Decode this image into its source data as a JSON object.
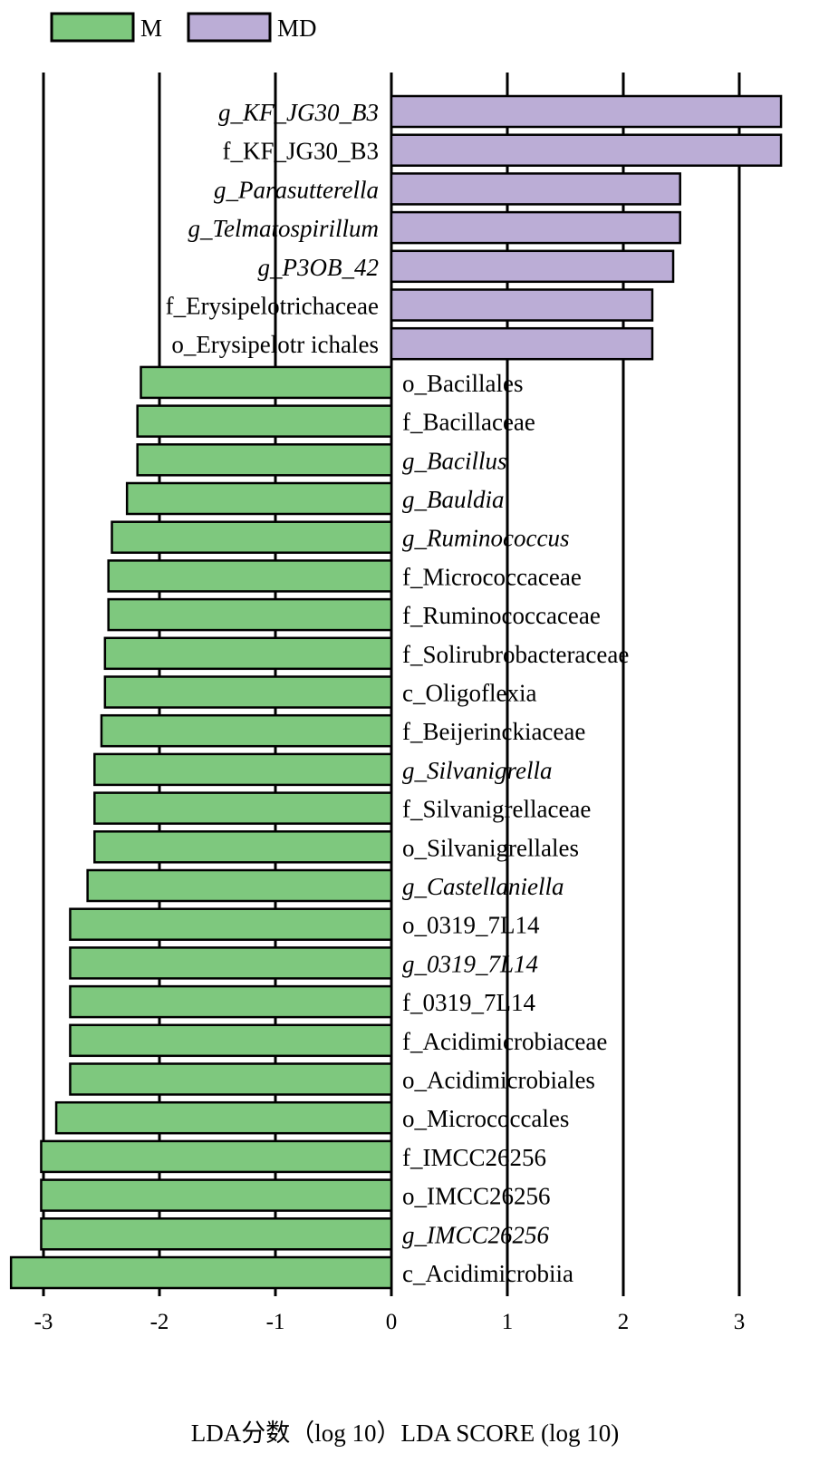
{
  "chart_data": {
    "type": "bar",
    "orientation": "horizontal",
    "xlabel": "LDA分数（log 10）LDA SCORE (log 10)",
    "xlim": [
      -3.3,
      3.4
    ],
    "xticks": [
      -3,
      -2,
      -1,
      0,
      1,
      2,
      3
    ],
    "xtick_labels": [
      "-3",
      "-2",
      "-1",
      "0",
      "1",
      "2",
      "3"
    ],
    "grid": "vertical",
    "legend_position": "top-left",
    "series": [
      {
        "name": "M",
        "color": "#7ec87e"
      },
      {
        "name": "MD",
        "color": "#bbadd6"
      }
    ],
    "bars": [
      {
        "label": "g_KF_JG30_B3",
        "value": 3.36,
        "group": "MD",
        "italic": true
      },
      {
        "label": "f_KF_JG30_B3",
        "value": 3.36,
        "group": "MD",
        "italic": false
      },
      {
        "label": "g_Parasutterella",
        "value": 2.49,
        "group": "MD",
        "italic": true
      },
      {
        "label": "g_Telmatospirillum",
        "value": 2.49,
        "group": "MD",
        "italic": true
      },
      {
        "label": "g_P3OB_42",
        "value": 2.43,
        "group": "MD",
        "italic": true
      },
      {
        "label": "f_Erysipelotrichaceae",
        "value": 2.25,
        "group": "MD",
        "italic": false
      },
      {
        "label": "o_Erysipelotr ichales",
        "value": 2.25,
        "group": "MD",
        "italic": false
      },
      {
        "label": "o_Bacillales",
        "value": -2.16,
        "group": "M",
        "italic": false
      },
      {
        "label": "f_Bacillaceae",
        "value": -2.19,
        "group": "M",
        "italic": false
      },
      {
        "label": "g_Bacillus",
        "value": -2.19,
        "group": "M",
        "italic": true
      },
      {
        "label": "g_Bauldia",
        "value": -2.28,
        "group": "M",
        "italic": true
      },
      {
        "label": "g_Ruminococcus",
        "value": -2.41,
        "group": "M",
        "italic": true
      },
      {
        "label": "f_Micrococcaceae",
        "value": -2.44,
        "group": "M",
        "italic": false
      },
      {
        "label": "f_Ruminococcaceae",
        "value": -2.44,
        "group": "M",
        "italic": false
      },
      {
        "label": "f_Solirubrobacteraceae",
        "value": -2.47,
        "group": "M",
        "italic": false
      },
      {
        "label": "c_Oligoflexia",
        "value": -2.47,
        "group": "M",
        "italic": false
      },
      {
        "label": "f_Beijerinckiaceae",
        "value": -2.5,
        "group": "M",
        "italic": false
      },
      {
        "label": "g_Silvanigrella",
        "value": -2.56,
        "group": "M",
        "italic": true
      },
      {
        "label": "f_Silvanigrellaceae",
        "value": -2.56,
        "group": "M",
        "italic": false
      },
      {
        "label": "o_Silvanigrellales",
        "value": -2.56,
        "group": "M",
        "italic": false
      },
      {
        "label": "g_Castellaniella",
        "value": -2.62,
        "group": "M",
        "italic": true
      },
      {
        "label": "o_0319_7L14",
        "value": -2.77,
        "group": "M",
        "italic": false
      },
      {
        "label": "g_0319_7L14",
        "value": -2.77,
        "group": "M",
        "italic": true
      },
      {
        "label": "f_0319_7L14",
        "value": -2.77,
        "group": "M",
        "italic": false
      },
      {
        "label": "f_Acidimicrobiaceae",
        "value": -2.77,
        "group": "M",
        "italic": false
      },
      {
        "label": "o_Acidimicrobiales",
        "value": -2.77,
        "group": "M",
        "italic": false
      },
      {
        "label": "o_Micrococcales",
        "value": -2.89,
        "group": "M",
        "italic": false
      },
      {
        "label": "f_IMCC26256",
        "value": -3.02,
        "group": "M",
        "italic": false
      },
      {
        "label": "o_IMCC26256",
        "value": -3.02,
        "group": "M",
        "italic": false
      },
      {
        "label": "g_IMCC26256",
        "value": -3.02,
        "group": "M",
        "italic": true
      },
      {
        "label": "c_Acidimicrobiia",
        "value": -3.28,
        "group": "M",
        "italic": false
      }
    ]
  }
}
